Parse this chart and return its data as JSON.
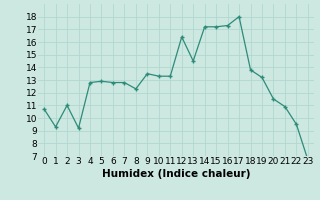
{
  "x": [
    0,
    1,
    2,
    3,
    4,
    5,
    6,
    7,
    8,
    9,
    10,
    11,
    12,
    13,
    14,
    15,
    16,
    17,
    18,
    19,
    20,
    21,
    22,
    23
  ],
  "y": [
    10.7,
    9.3,
    11.0,
    9.2,
    12.8,
    12.9,
    12.8,
    12.8,
    12.3,
    13.5,
    13.3,
    13.3,
    16.4,
    14.5,
    17.2,
    17.2,
    17.3,
    18.0,
    13.8,
    13.2,
    11.5,
    10.9,
    9.5,
    6.7
  ],
  "xlabel": "Humidex (Indice chaleur)",
  "ylim": [
    7,
    19
  ],
  "yticks": [
    7,
    8,
    9,
    10,
    11,
    12,
    13,
    14,
    15,
    16,
    17,
    18
  ],
  "xticks": [
    0,
    1,
    2,
    3,
    4,
    5,
    6,
    7,
    8,
    9,
    10,
    11,
    12,
    13,
    14,
    15,
    16,
    17,
    18,
    19,
    20,
    21,
    22,
    23
  ],
  "line_color": "#2e8b7a",
  "marker": "+",
  "marker_size": 3,
  "bg_color": "#cce8e0",
  "grid_color": "#b0d8d0",
  "xlabel_fontsize": 7.5,
  "tick_fontsize": 6.5
}
